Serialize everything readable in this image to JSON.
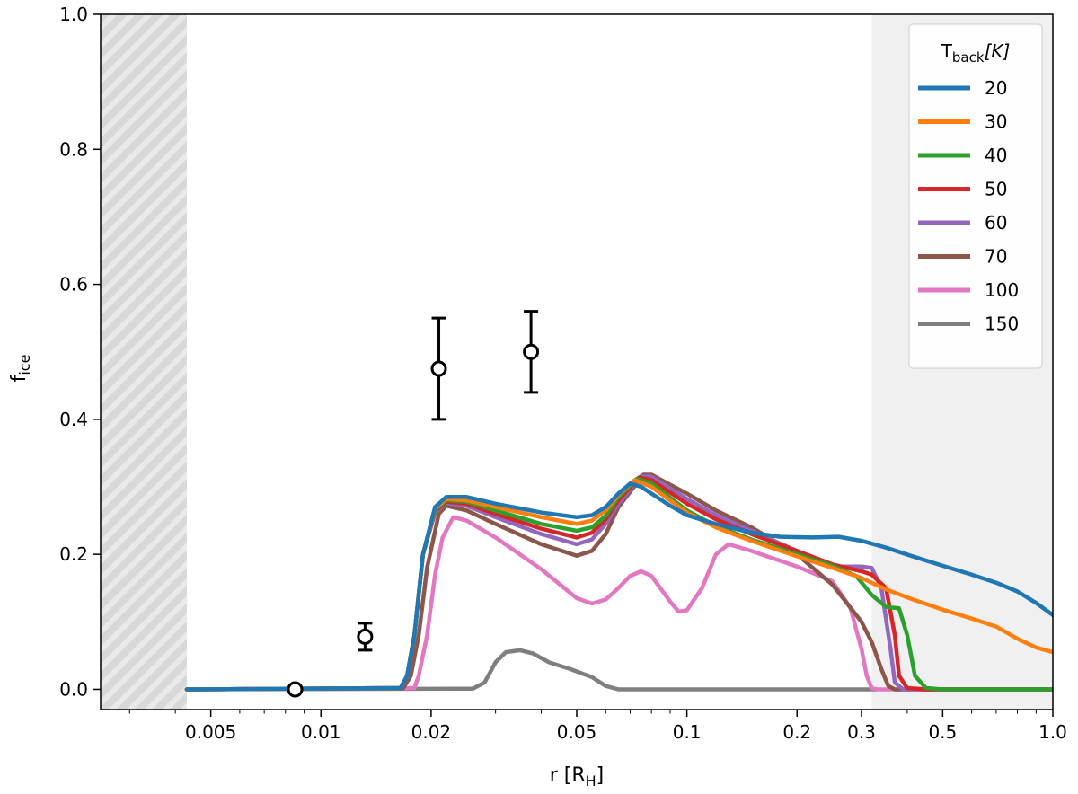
{
  "chart_data": {
    "type": "line",
    "xscale": "log",
    "xlim": [
      0.0025,
      1.0
    ],
    "ylim": [
      -0.03,
      1.0
    ],
    "xlabel": {
      "main": "r [R",
      "sub": "H",
      "close": "]"
    },
    "ylabel": {
      "main": "f",
      "sub": "ice"
    },
    "xticks": [
      {
        "value": 0.005,
        "label": "0.005"
      },
      {
        "value": 0.01,
        "label": "0.01"
      },
      {
        "value": 0.02,
        "label": "0.02"
      },
      {
        "value": 0.05,
        "label": "0.05"
      },
      {
        "value": 0.1,
        "label": "0.1"
      },
      {
        "value": 0.2,
        "label": "0.2"
      },
      {
        "value": 0.3,
        "label": "0.3"
      },
      {
        "value": 0.5,
        "label": "0.5"
      },
      {
        "value": 1.0,
        "label": "1.0"
      }
    ],
    "yticks": [
      {
        "value": 0.0,
        "label": "0.0"
      },
      {
        "value": 0.2,
        "label": "0.2"
      },
      {
        "value": 0.4,
        "label": "0.4"
      },
      {
        "value": 0.6,
        "label": "0.6"
      },
      {
        "value": 0.8,
        "label": "0.8"
      },
      {
        "value": 1.0,
        "label": "1.0"
      }
    ],
    "shaded_regions": [
      {
        "kind": "hatched",
        "x": [
          0.0025,
          0.0043
        ],
        "color": "#d8d8d8"
      },
      {
        "kind": "plain",
        "x": [
          0.32,
          1.0
        ],
        "color": "#f0f0f0"
      }
    ],
    "legend": {
      "title_main": "T",
      "title_sub": "back",
      "title_unit": "[K]",
      "position": "top-right"
    },
    "series": [
      {
        "name": "20",
        "color": "#1f77b4",
        "points": [
          [
            0.0043,
            0.0
          ],
          [
            0.0165,
            0.002
          ],
          [
            0.0172,
            0.02
          ],
          [
            0.018,
            0.08
          ],
          [
            0.019,
            0.2
          ],
          [
            0.0205,
            0.27
          ],
          [
            0.022,
            0.285
          ],
          [
            0.025,
            0.285
          ],
          [
            0.03,
            0.275
          ],
          [
            0.04,
            0.262
          ],
          [
            0.05,
            0.255
          ],
          [
            0.055,
            0.258
          ],
          [
            0.06,
            0.27
          ],
          [
            0.065,
            0.29
          ],
          [
            0.07,
            0.305
          ],
          [
            0.075,
            0.3
          ],
          [
            0.08,
            0.29
          ],
          [
            0.09,
            0.272
          ],
          [
            0.1,
            0.258
          ],
          [
            0.12,
            0.245
          ],
          [
            0.15,
            0.232
          ],
          [
            0.18,
            0.226
          ],
          [
            0.22,
            0.225
          ],
          [
            0.26,
            0.226
          ],
          [
            0.3,
            0.22
          ],
          [
            0.35,
            0.21
          ],
          [
            0.42,
            0.196
          ],
          [
            0.5,
            0.183
          ],
          [
            0.6,
            0.17
          ],
          [
            0.7,
            0.158
          ],
          [
            0.8,
            0.145
          ],
          [
            0.9,
            0.128
          ],
          [
            1.0,
            0.11
          ]
        ]
      },
      {
        "name": "30",
        "color": "#ff7f0e",
        "points": [
          [
            0.0043,
            0.0
          ],
          [
            0.0165,
            0.002
          ],
          [
            0.0172,
            0.02
          ],
          [
            0.018,
            0.08
          ],
          [
            0.019,
            0.2
          ],
          [
            0.0205,
            0.268
          ],
          [
            0.022,
            0.282
          ],
          [
            0.025,
            0.28
          ],
          [
            0.03,
            0.27
          ],
          [
            0.04,
            0.255
          ],
          [
            0.05,
            0.245
          ],
          [
            0.055,
            0.25
          ],
          [
            0.06,
            0.265
          ],
          [
            0.065,
            0.288
          ],
          [
            0.072,
            0.31
          ],
          [
            0.08,
            0.3
          ],
          [
            0.1,
            0.262
          ],
          [
            0.12,
            0.24
          ],
          [
            0.15,
            0.22
          ],
          [
            0.2,
            0.197
          ],
          [
            0.25,
            0.18
          ],
          [
            0.3,
            0.165
          ],
          [
            0.35,
            0.148
          ],
          [
            0.42,
            0.132
          ],
          [
            0.5,
            0.118
          ],
          [
            0.6,
            0.105
          ],
          [
            0.7,
            0.093
          ],
          [
            0.8,
            0.075
          ],
          [
            0.9,
            0.062
          ],
          [
            1.0,
            0.055
          ]
        ]
      },
      {
        "name": "40",
        "color": "#2ca02c",
        "points": [
          [
            0.0043,
            0.0
          ],
          [
            0.0165,
            0.002
          ],
          [
            0.0172,
            0.02
          ],
          [
            0.018,
            0.08
          ],
          [
            0.019,
            0.2
          ],
          [
            0.0205,
            0.266
          ],
          [
            0.022,
            0.28
          ],
          [
            0.025,
            0.278
          ],
          [
            0.03,
            0.265
          ],
          [
            0.04,
            0.245
          ],
          [
            0.05,
            0.235
          ],
          [
            0.055,
            0.24
          ],
          [
            0.06,
            0.257
          ],
          [
            0.065,
            0.285
          ],
          [
            0.073,
            0.312
          ],
          [
            0.08,
            0.305
          ],
          [
            0.1,
            0.265
          ],
          [
            0.12,
            0.242
          ],
          [
            0.15,
            0.222
          ],
          [
            0.2,
            0.2
          ],
          [
            0.25,
            0.183
          ],
          [
            0.29,
            0.168
          ],
          [
            0.32,
            0.14
          ],
          [
            0.35,
            0.122
          ],
          [
            0.38,
            0.12
          ],
          [
            0.4,
            0.08
          ],
          [
            0.42,
            0.02
          ],
          [
            0.45,
            0.002
          ],
          [
            0.5,
            0.0
          ],
          [
            1.0,
            0.0
          ]
        ]
      },
      {
        "name": "50",
        "color": "#d62728",
        "points": [
          [
            0.0043,
            0.0
          ],
          [
            0.0165,
            0.002
          ],
          [
            0.0172,
            0.02
          ],
          [
            0.018,
            0.08
          ],
          [
            0.019,
            0.2
          ],
          [
            0.0205,
            0.264
          ],
          [
            0.022,
            0.278
          ],
          [
            0.025,
            0.275
          ],
          [
            0.03,
            0.26
          ],
          [
            0.04,
            0.238
          ],
          [
            0.05,
            0.225
          ],
          [
            0.055,
            0.232
          ],
          [
            0.06,
            0.252
          ],
          [
            0.065,
            0.28
          ],
          [
            0.074,
            0.314
          ],
          [
            0.08,
            0.31
          ],
          [
            0.1,
            0.275
          ],
          [
            0.12,
            0.252
          ],
          [
            0.15,
            0.23
          ],
          [
            0.2,
            0.205
          ],
          [
            0.25,
            0.185
          ],
          [
            0.3,
            0.175
          ],
          [
            0.32,
            0.17
          ],
          [
            0.35,
            0.15
          ],
          [
            0.37,
            0.08
          ],
          [
            0.38,
            0.02
          ],
          [
            0.4,
            0.002
          ],
          [
            0.45,
            0.0
          ],
          [
            1.0,
            0.0
          ]
        ]
      },
      {
        "name": "60",
        "color": "#9467bd",
        "points": [
          [
            0.0043,
            0.0
          ],
          [
            0.0165,
            0.002
          ],
          [
            0.0172,
            0.02
          ],
          [
            0.018,
            0.08
          ],
          [
            0.019,
            0.2
          ],
          [
            0.0205,
            0.262
          ],
          [
            0.022,
            0.276
          ],
          [
            0.025,
            0.272
          ],
          [
            0.03,
            0.255
          ],
          [
            0.04,
            0.23
          ],
          [
            0.05,
            0.215
          ],
          [
            0.055,
            0.222
          ],
          [
            0.06,
            0.245
          ],
          [
            0.065,
            0.275
          ],
          [
            0.075,
            0.316
          ],
          [
            0.08,
            0.315
          ],
          [
            0.1,
            0.282
          ],
          [
            0.12,
            0.258
          ],
          [
            0.15,
            0.235
          ],
          [
            0.2,
            0.205
          ],
          [
            0.25,
            0.182
          ],
          [
            0.3,
            0.182
          ],
          [
            0.32,
            0.18
          ],
          [
            0.34,
            0.15
          ],
          [
            0.36,
            0.06
          ],
          [
            0.37,
            0.01
          ],
          [
            0.39,
            0.0
          ],
          [
            1.0,
            0.0
          ]
        ]
      },
      {
        "name": "70",
        "color": "#8c564b",
        "points": [
          [
            0.0043,
            0.0
          ],
          [
            0.0168,
            0.002
          ],
          [
            0.0176,
            0.02
          ],
          [
            0.0185,
            0.08
          ],
          [
            0.0195,
            0.18
          ],
          [
            0.021,
            0.26
          ],
          [
            0.022,
            0.272
          ],
          [
            0.025,
            0.265
          ],
          [
            0.03,
            0.245
          ],
          [
            0.04,
            0.215
          ],
          [
            0.05,
            0.198
          ],
          [
            0.055,
            0.205
          ],
          [
            0.06,
            0.23
          ],
          [
            0.065,
            0.27
          ],
          [
            0.076,
            0.318
          ],
          [
            0.08,
            0.318
          ],
          [
            0.1,
            0.29
          ],
          [
            0.12,
            0.265
          ],
          [
            0.15,
            0.24
          ],
          [
            0.2,
            0.2
          ],
          [
            0.25,
            0.155
          ],
          [
            0.3,
            0.1
          ],
          [
            0.32,
            0.07
          ],
          [
            0.34,
            0.03
          ],
          [
            0.355,
            0.005
          ],
          [
            0.37,
            0.0
          ],
          [
            1.0,
            0.0
          ]
        ]
      },
      {
        "name": "100",
        "color": "#e377c2",
        "points": [
          [
            0.0043,
            0.0
          ],
          [
            0.018,
            0.002
          ],
          [
            0.0185,
            0.02
          ],
          [
            0.0195,
            0.08
          ],
          [
            0.0205,
            0.17
          ],
          [
            0.0215,
            0.225
          ],
          [
            0.023,
            0.255
          ],
          [
            0.025,
            0.25
          ],
          [
            0.03,
            0.225
          ],
          [
            0.04,
            0.178
          ],
          [
            0.05,
            0.135
          ],
          [
            0.055,
            0.127
          ],
          [
            0.06,
            0.133
          ],
          [
            0.065,
            0.15
          ],
          [
            0.07,
            0.168
          ],
          [
            0.075,
            0.175
          ],
          [
            0.08,
            0.168
          ],
          [
            0.09,
            0.13
          ],
          [
            0.095,
            0.115
          ],
          [
            0.1,
            0.117
          ],
          [
            0.11,
            0.15
          ],
          [
            0.12,
            0.2
          ],
          [
            0.13,
            0.215
          ],
          [
            0.15,
            0.205
          ],
          [
            0.2,
            0.182
          ],
          [
            0.25,
            0.16
          ],
          [
            0.28,
            0.12
          ],
          [
            0.3,
            0.06
          ],
          [
            0.31,
            0.02
          ],
          [
            0.32,
            0.002
          ],
          [
            0.33,
            0.0
          ],
          [
            1.0,
            0.0
          ]
        ]
      },
      {
        "name": "150",
        "color": "#7f7f7f",
        "points": [
          [
            0.0043,
            0.0
          ],
          [
            0.026,
            0.001
          ],
          [
            0.028,
            0.01
          ],
          [
            0.03,
            0.04
          ],
          [
            0.032,
            0.055
          ],
          [
            0.035,
            0.058
          ],
          [
            0.038,
            0.053
          ],
          [
            0.042,
            0.04
          ],
          [
            0.048,
            0.03
          ],
          [
            0.055,
            0.018
          ],
          [
            0.06,
            0.005
          ],
          [
            0.065,
            0.0
          ],
          [
            0.33,
            0.0
          ]
        ]
      }
    ],
    "observations": [
      {
        "x": 0.0085,
        "y": 0.0,
        "err": 0.0
      },
      {
        "x": 0.0132,
        "y": 0.078,
        "err": 0.02
      },
      {
        "x": 0.021,
        "y": 0.475,
        "err": 0.075
      },
      {
        "x": 0.0375,
        "y": 0.5,
        "err": 0.06
      }
    ]
  }
}
